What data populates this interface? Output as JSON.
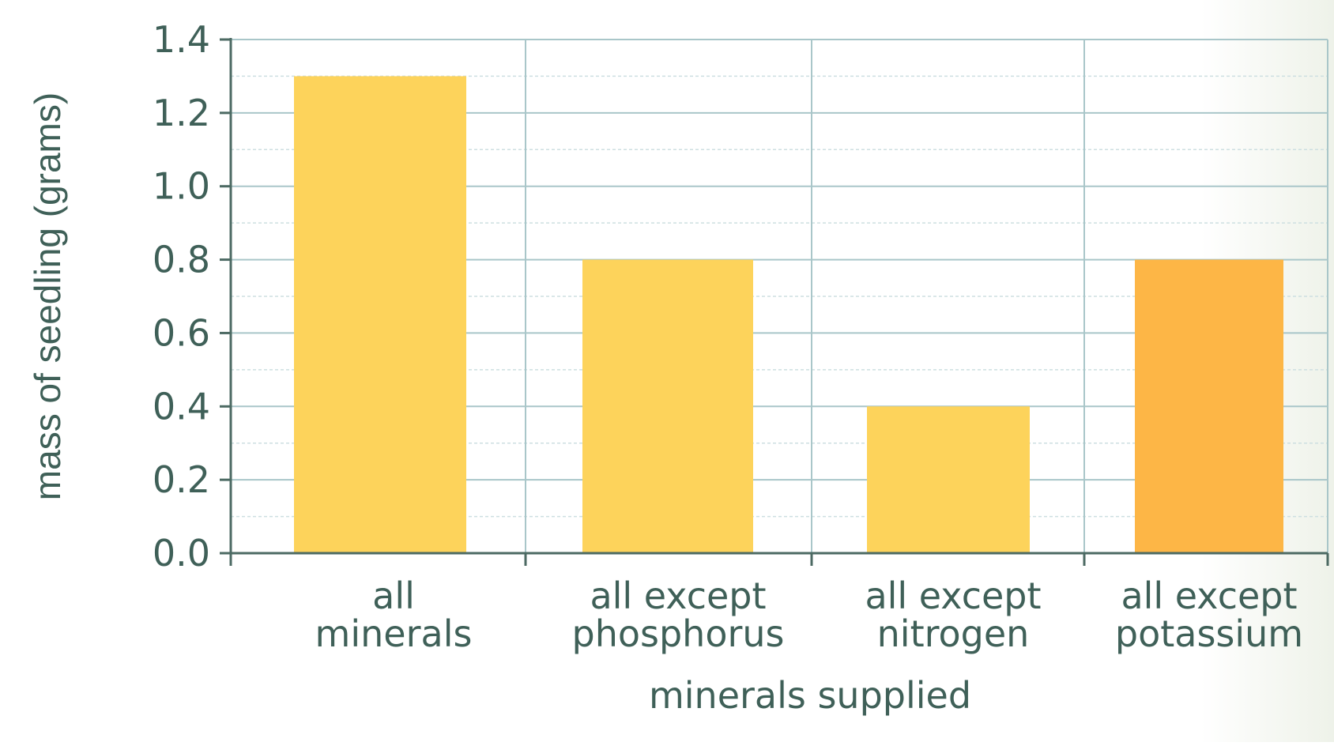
{
  "chart_data": {
    "type": "bar",
    "title": "",
    "xlabel": "minerals supplied",
    "ylabel": "mass of seedling (grams)",
    "ylim": [
      0,
      1.4
    ],
    "yticks": [
      "0.0",
      "0.2",
      "0.4",
      "0.6",
      "0.8",
      "1.0",
      "1.2",
      "1.4"
    ],
    "grid": true,
    "categories": [
      [
        "all",
        "minerals"
      ],
      [
        "all except",
        "phosphorus"
      ],
      [
        "all except",
        "nitrogen"
      ],
      [
        "all except",
        "potassium"
      ]
    ],
    "values": [
      1.3,
      0.8,
      0.4,
      0.8
    ],
    "colors": {
      "bar": "#fdd35b",
      "bar_last": "#fdb646",
      "grid_major": "#a9c6c9",
      "grid_minor": "#cddfe1",
      "axis": "#4c6a63",
      "text": "#3f6058"
    }
  }
}
